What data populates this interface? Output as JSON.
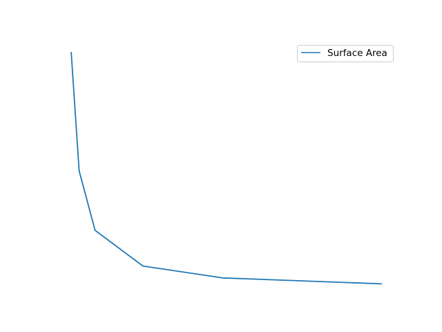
{
  "chart_data": {
    "type": "line",
    "title": "",
    "xlabel": "",
    "ylabel": "",
    "axes_visible": false,
    "legend_position": "upper-right",
    "series": [
      {
        "name": "Surface Area",
        "color": "#1f77b4",
        "x": [
          1,
          1.5,
          2.5,
          5.5,
          10.5,
          20.5
        ],
        "y": [
          6.0,
          3.0,
          1.5,
          0.6,
          0.3,
          0.15
        ]
      }
    ],
    "xlim": [
      0,
      21.5
    ],
    "ylim": [
      -0.14,
      6.3
    ]
  }
}
